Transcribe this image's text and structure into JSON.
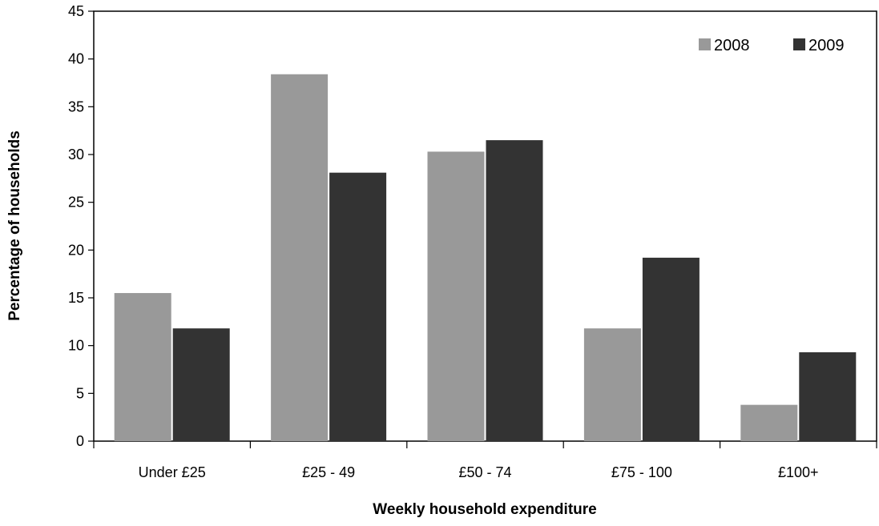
{
  "chart_data": {
    "type": "bar",
    "title": "",
    "xlabel": "Weekly household expenditure",
    "ylabel": "Percentage of households",
    "categories": [
      "Under £25",
      "£25 - 49",
      "£50 - 74",
      "£75 - 100",
      "£100+"
    ],
    "series": [
      {
        "name": "2008",
        "color": "#999999",
        "values": [
          15.5,
          38.4,
          30.3,
          11.8,
          3.8
        ]
      },
      {
        "name": "2009",
        "color": "#333333",
        "values": [
          11.8,
          28.1,
          31.5,
          19.2,
          9.3
        ]
      }
    ],
    "ylim": [
      0,
      45
    ],
    "yticks": [
      "0",
      "5",
      "10",
      "15",
      "20",
      "25",
      "30",
      "35",
      "40",
      "45"
    ],
    "grid": false,
    "legend_position": "top-right"
  }
}
